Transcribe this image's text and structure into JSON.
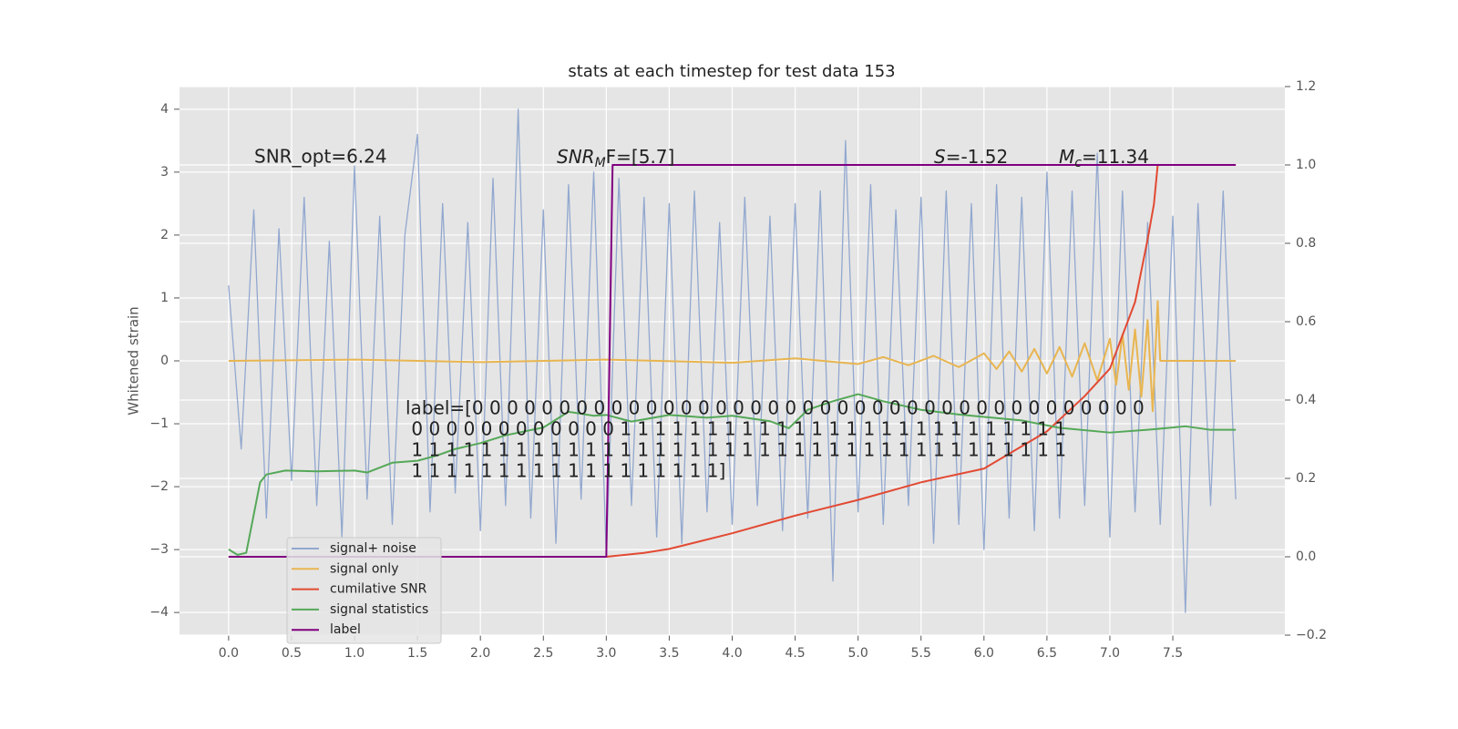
{
  "chart_data": {
    "type": "line",
    "title": "stats at each timestep for test data 153",
    "ylabel": "Whitened strain",
    "xlim": [
      -0.39,
      8.39
    ],
    "ylim": [
      -4.36,
      4.36
    ],
    "y2lim": [
      -0.2,
      1.2
    ],
    "xticks": [
      {
        "value": 0,
        "label": "0.0"
      },
      0.5,
      {
        "value": 1,
        "label": "1.0"
      },
      1.5,
      {
        "value": 2,
        "label": "2.0"
      },
      2.5,
      {
        "value": 3,
        "label": "3.0"
      },
      3.5,
      {
        "value": 4,
        "label": "4.0"
      },
      4.5,
      {
        "value": 5,
        "label": "5.0"
      },
      5.5,
      {
        "value": 6,
        "label": "6.0"
      },
      6.5,
      {
        "value": 7,
        "label": "7.0"
      },
      7.5
    ],
    "yticks": [
      {
        "value": -4,
        "label": "−4"
      },
      {
        "value": -3,
        "label": "−3"
      },
      {
        "value": -2,
        "label": "−2"
      },
      {
        "value": -1,
        "label": "−1"
      },
      0,
      1,
      2,
      3,
      4
    ],
    "y2ticks": [
      {
        "value": -0.2,
        "label": "−0.2"
      },
      {
        "value": 0,
        "label": "0.0"
      },
      0.2,
      0.4,
      0.6,
      0.8,
      {
        "value": 1,
        "label": "1.0"
      },
      1.2
    ],
    "grid": true,
    "legend": "lower left",
    "series": [
      {
        "name": "signal+ noise",
        "color": "#92a8cf",
        "x": [
          0,
          0.1,
          0.2,
          0.3,
          0.4,
          0.5,
          0.6,
          0.7,
          0.8,
          0.9,
          1,
          1.1,
          1.2,
          1.3,
          1.4,
          1.5,
          1.6,
          1.7,
          1.8,
          1.9,
          2,
          2.1,
          2.2,
          2.3,
          2.4,
          2.5,
          2.6,
          2.7,
          2.8,
          2.9,
          3,
          3.1,
          3.2,
          3.3,
          3.4,
          3.5,
          3.6,
          3.7,
          3.8,
          3.9,
          4,
          4.1,
          4.2,
          4.3,
          4.4,
          4.5,
          4.6,
          4.7,
          4.8,
          4.9,
          5,
          5.1,
          5.2,
          5.3,
          5.4,
          5.5,
          5.6,
          5.7,
          5.8,
          5.9,
          6,
          6.1,
          6.2,
          6.3,
          6.4,
          6.5,
          6.6,
          6.7,
          6.8,
          6.9,
          7,
          7.1,
          7.2,
          7.3,
          7.4,
          7.5,
          7.6,
          7.7,
          7.8,
          7.9,
          8
        ],
        "values": [
          1.2,
          -1.4,
          2.4,
          -2.5,
          2.1,
          -1.9,
          2.6,
          -2.3,
          1.9,
          -2.8,
          3.1,
          -2.2,
          2.3,
          -2.6,
          2.0,
          3.6,
          -2.4,
          2.5,
          -2.1,
          2.2,
          -2.7,
          2.9,
          -2.3,
          4.0,
          -2.5,
          2.4,
          -2.9,
          2.8,
          -2.2,
          3.0,
          -3.1,
          2.9,
          -2.3,
          2.6,
          -2.8,
          2.5,
          -2.9,
          2.7,
          -2.4,
          2.2,
          -2.6,
          2.6,
          -2.3,
          2.3,
          -2.7,
          2.5,
          -2.5,
          2.7,
          -3.5,
          3.5,
          -2.4,
          2.8,
          -2.6,
          2.4,
          -2.3,
          2.6,
          -2.9,
          2.7,
          -2.6,
          2.5,
          -3.0,
          2.8,
          -2.5,
          2.6,
          -2.7,
          3.0,
          -2.5,
          2.7,
          -2.3,
          3.3,
          -2.8,
          2.7,
          -2.4,
          2.2,
          -2.6,
          2.3,
          -4.0,
          2.5,
          -2.3,
          2.7,
          -2.2
        ]
      },
      {
        "name": "signal only",
        "color": "#e8b550",
        "x": [
          0,
          1,
          2,
          3,
          4,
          4.5,
          5,
          5.2,
          5.4,
          5.6,
          5.8,
          6,
          6.1,
          6.2,
          6.3,
          6.4,
          6.5,
          6.6,
          6.7,
          6.8,
          6.9,
          7,
          7.05,
          7.1,
          7.15,
          7.2,
          7.25,
          7.3,
          7.34,
          7.38,
          7.4,
          8
        ],
        "values": [
          0,
          0.02,
          -0.02,
          0.02,
          -0.03,
          0.04,
          -0.05,
          0.06,
          -0.07,
          0.08,
          -0.1,
          0.12,
          -0.13,
          0.15,
          -0.17,
          0.19,
          -0.2,
          0.22,
          -0.25,
          0.28,
          -0.31,
          0.35,
          -0.38,
          0.42,
          -0.46,
          0.5,
          -0.57,
          0.65,
          -0.8,
          0.95,
          0,
          0
        ]
      },
      {
        "name": "cumilative SNR",
        "color": "#e24a33",
        "axis": "y2",
        "x": [
          0,
          3,
          3.3,
          3.5,
          4,
          4.5,
          5,
          5.5,
          6,
          6.5,
          6.8,
          7,
          7.2,
          7.3,
          7.35,
          7.38,
          8
        ],
        "values": [
          0,
          0,
          0.01,
          0.02,
          0.06,
          0.105,
          0.145,
          0.19,
          0.225,
          0.32,
          0.41,
          0.48,
          0.65,
          0.81,
          0.9,
          1,
          1
        ]
      },
      {
        "name": "signal statistics",
        "color": "#55a858",
        "axis": "y2",
        "x": [
          0,
          0.07,
          0.14,
          0.25,
          0.3,
          0.45,
          0.7,
          1,
          1.1,
          1.3,
          1.5,
          1.65,
          1.8,
          2,
          2.2,
          2.5,
          2.7,
          2.9,
          3,
          3.2,
          3.5,
          3.8,
          4,
          4.3,
          4.45,
          4.6,
          4.8,
          5,
          5.2,
          5.5,
          5.8,
          6,
          6.3,
          6.6,
          7,
          7.3,
          7.6,
          7.8,
          8
        ],
        "values": [
          0.019,
          0.005,
          0.01,
          0.19,
          0.21,
          0.22,
          0.218,
          0.22,
          0.215,
          0.24,
          0.245,
          0.258,
          0.275,
          0.29,
          0.31,
          0.33,
          0.37,
          0.36,
          0.362,
          0.345,
          0.362,
          0.355,
          0.36,
          0.346,
          0.328,
          0.375,
          0.397,
          0.415,
          0.397,
          0.375,
          0.363,
          0.357,
          0.348,
          0.329,
          0.317,
          0.324,
          0.333,
          0.324,
          0.324
        ]
      },
      {
        "name": "label",
        "color": "#800080",
        "axis": "y2",
        "x": [
          0,
          3,
          3.05,
          8
        ],
        "values": [
          0,
          0,
          1,
          1
        ]
      }
    ],
    "annotations": {
      "snr_opt": "SNR_opt=6.24",
      "snr_mf": {
        "base": "SNR",
        "sub": "M",
        "rest": "F=[5.7]"
      },
      "s": {
        "base": "S",
        "rest": "=-1.52"
      },
      "mc": {
        "base": "M",
        "sub": "c",
        "rest": "=11.34"
      },
      "label_text": [
        "label=[0 0 0 0 0 0 0 0 0 0 0 0 0 0 0 0 0 0 0 0 0 0 0 0 0 0 0 0 0 0 0 0 0 0 0 0 0 0 0",
        " 0 0 0 0 0 0 0 0 0 0 0 0 1 1 1 1 1 1 1 1 1 1 1 1 1 1 1 1 1 1 1 1 1 1 1 1 1 1",
        " 1 1 1 1 1 1 1 1 1 1 1 1 1 1 1 1 1 1 1 1 1 1 1 1 1 1 1 1 1 1 1 1 1 1 1 1 1 1",
        " 1 1 1 1 1 1 1 1 1 1 1 1 1 1 1 1 1 1]"
      ]
    }
  }
}
